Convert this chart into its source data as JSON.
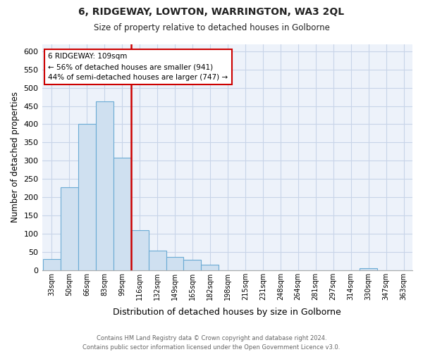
{
  "title": "6, RIDGEWAY, LOWTON, WARRINGTON, WA3 2QL",
  "subtitle": "Size of property relative to detached houses in Golborne",
  "xlabel": "Distribution of detached houses by size in Golborne",
  "ylabel": "Number of detached properties",
  "bar_color": "#cfe0f0",
  "bar_edge_color": "#6aaad4",
  "vline_color": "#cc0000",
  "annotation_title": "6 RIDGEWAY: 109sqm",
  "annotation_line1": "← 56% of detached houses are smaller (941)",
  "annotation_line2": "44% of semi-detached houses are larger (747) →",
  "annotation_box_edge": "#cc0000",
  "categories": [
    "33sqm",
    "50sqm",
    "66sqm",
    "83sqm",
    "99sqm",
    "116sqm",
    "132sqm",
    "149sqm",
    "165sqm",
    "182sqm",
    "198sqm",
    "215sqm",
    "231sqm",
    "248sqm",
    "264sqm",
    "281sqm",
    "297sqm",
    "314sqm",
    "330sqm",
    "347sqm",
    "363sqm"
  ],
  "values": [
    30,
    228,
    401,
    463,
    309,
    109,
    54,
    37,
    29,
    14,
    0,
    0,
    0,
    0,
    0,
    0,
    0,
    0,
    5,
    0,
    0
  ],
  "ylim": [
    0,
    620
  ],
  "yticks": [
    0,
    50,
    100,
    150,
    200,
    250,
    300,
    350,
    400,
    450,
    500,
    550,
    600
  ],
  "vline_bar_index": 4,
  "footer_line1": "Contains HM Land Registry data © Crown copyright and database right 2024.",
  "footer_line2": "Contains public sector information licensed under the Open Government Licence v3.0.",
  "background_color": "#ffffff",
  "grid_color": "#c8d4e8",
  "figsize": [
    6.0,
    5.0
  ],
  "dpi": 100
}
